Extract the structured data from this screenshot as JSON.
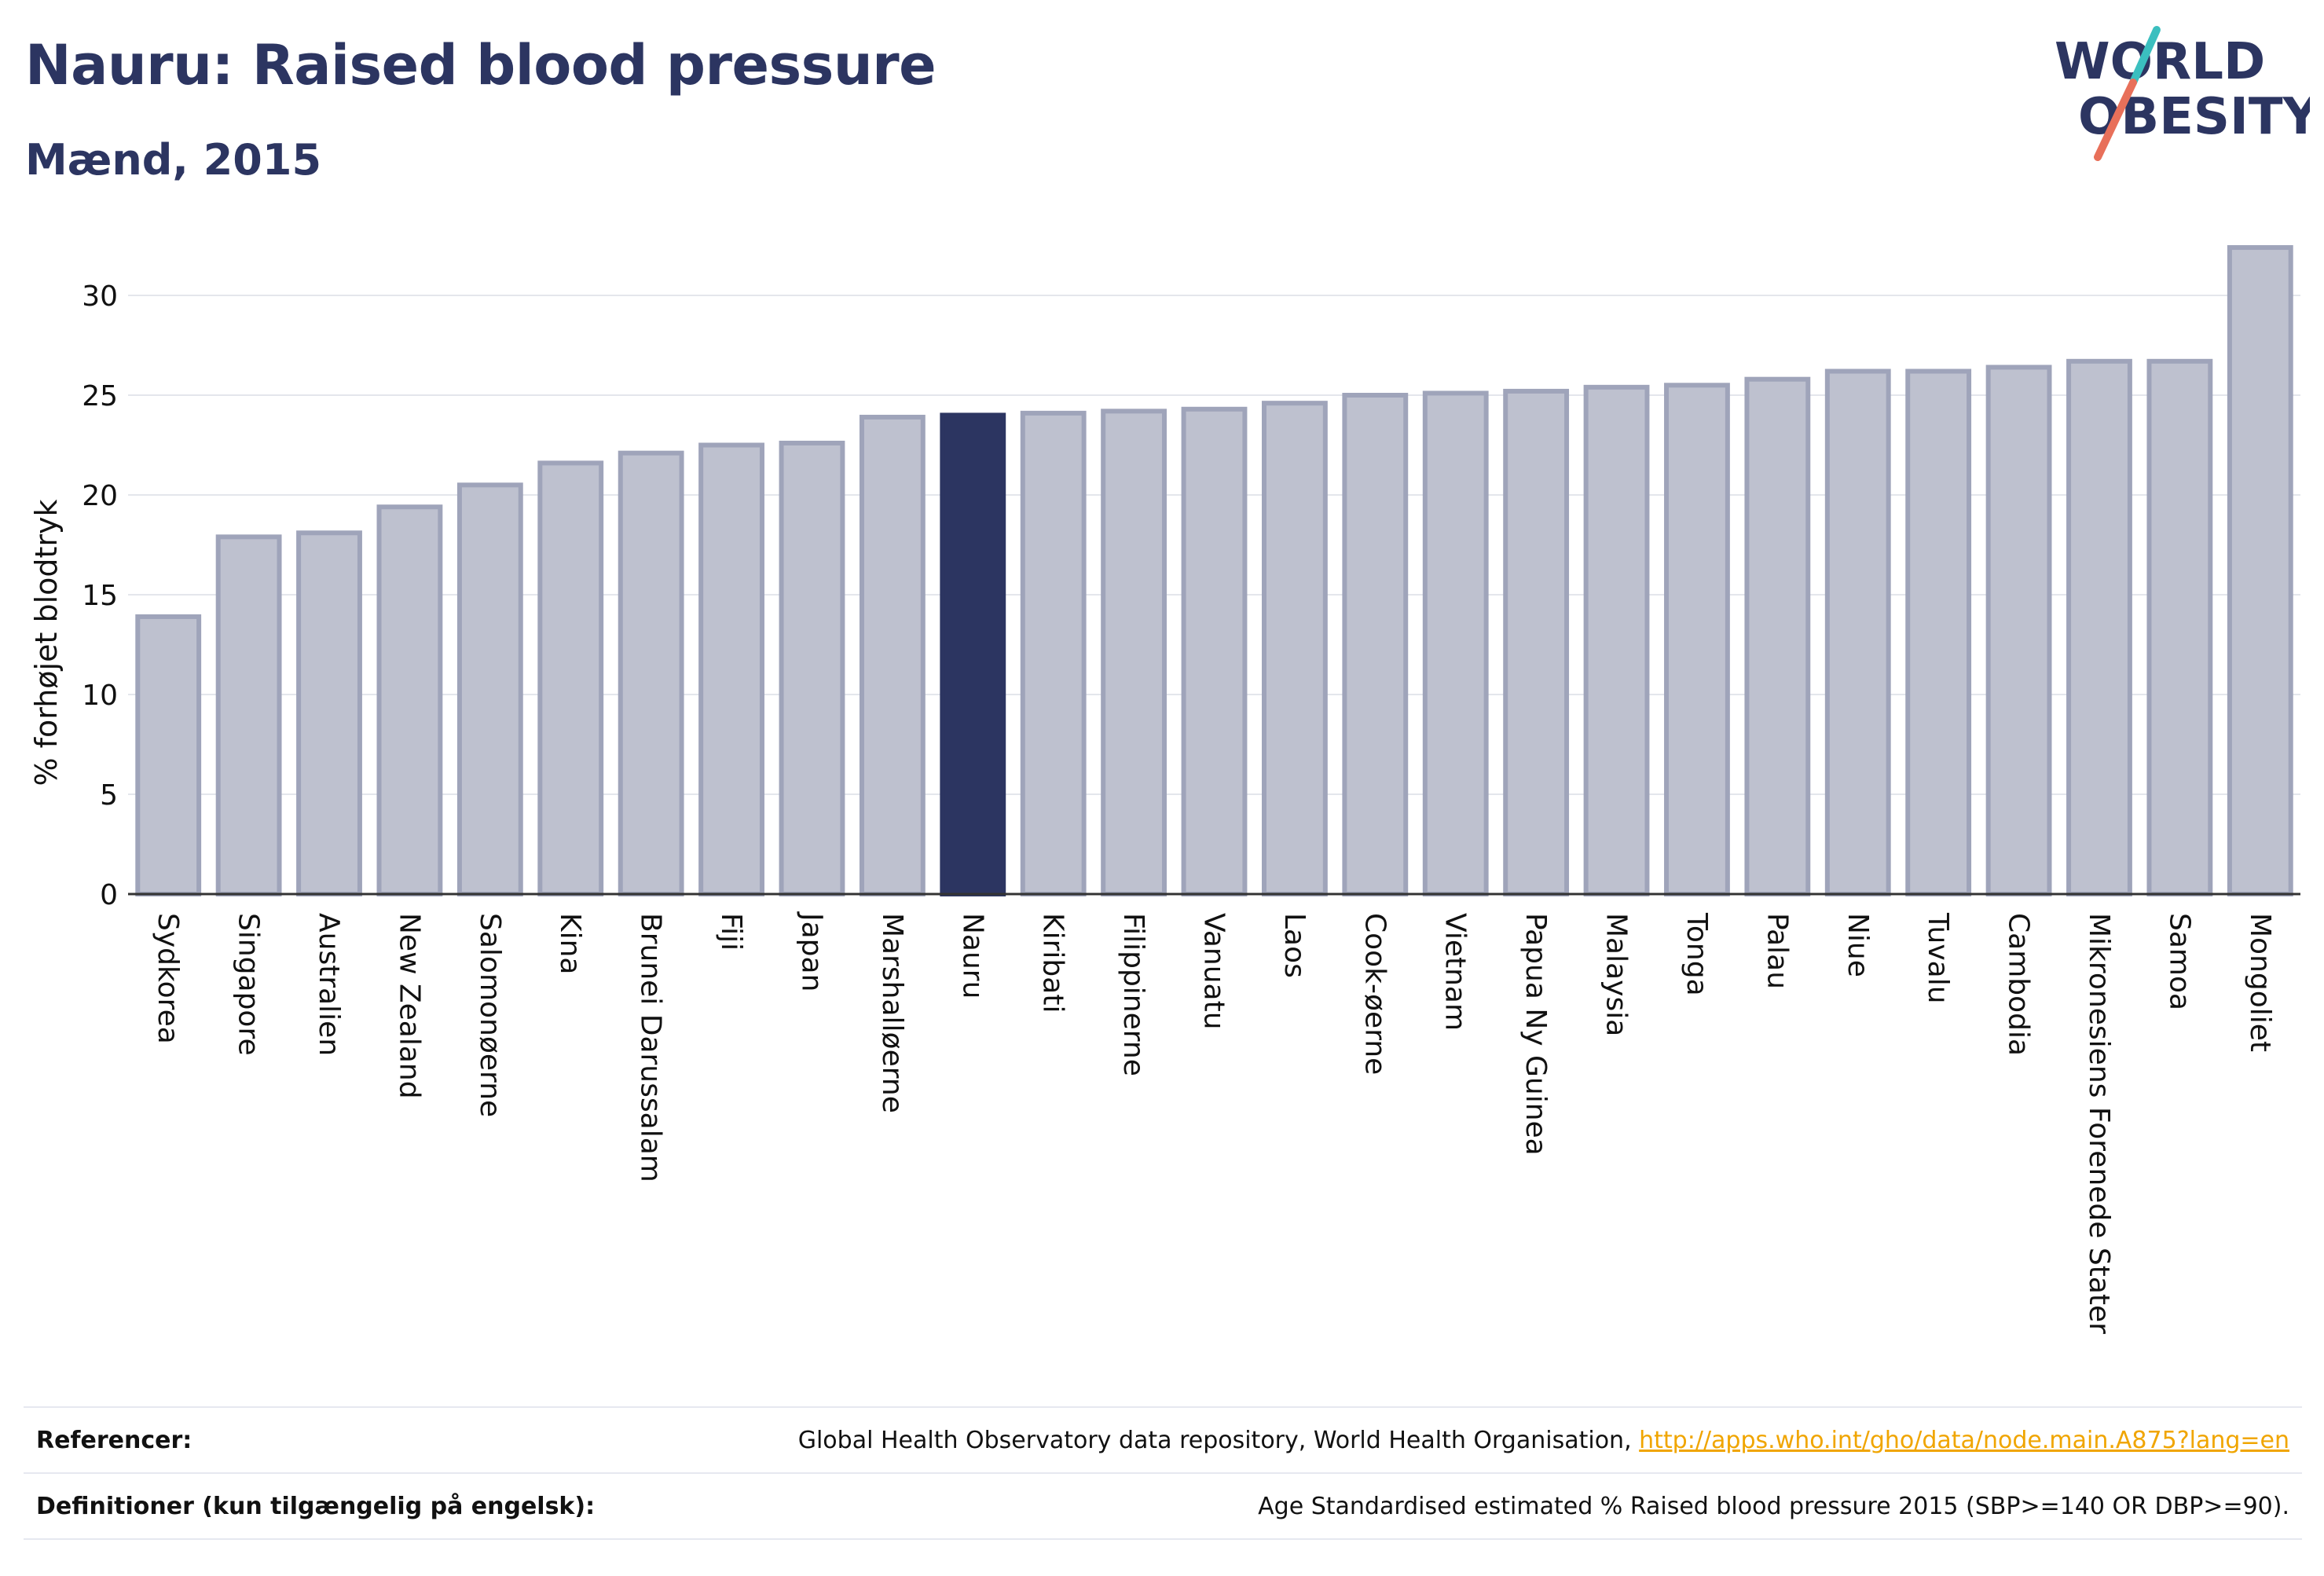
{
  "header": {
    "title": "Nauru: Raised blood pressure",
    "subtitle": "Mænd, 2015"
  },
  "logo": {
    "line1": "WORLD",
    "line2": "OBESITY",
    "colors": {
      "text": "#2c3561",
      "slash_top": "#3bbfbf",
      "slash_bottom": "#e8705a"
    }
  },
  "chart_data": {
    "type": "bar",
    "ylabel": "% forhøjet blodtryk",
    "ylim": [
      0,
      33
    ],
    "yticks": [
      0,
      5,
      10,
      15,
      20,
      25,
      30
    ],
    "grid": true,
    "highlight": "Nauru",
    "colors": {
      "bar": "#bec1cf",
      "bar_border": "#9fa4ba",
      "highlight": "#2c3561"
    },
    "categories": [
      "Sydkorea",
      "Singapore",
      "Australien",
      "New Zealand",
      "Salomonøerne",
      "Kina",
      "Brunei Darussalam",
      "Fiji",
      "Japan",
      "Marshalløerne",
      "Nauru",
      "Kiribati",
      "Filippinerne",
      "Vanuatu",
      "Laos",
      "Cook-øerne",
      "Vietnam",
      "Papua Ny Guinea",
      "Malaysia",
      "Tonga",
      "Palau",
      "Niue",
      "Tuvalu",
      "Cambodia",
      "Mikronesiens Forenede Stater",
      "Samoa",
      "Mongoliet"
    ],
    "values": [
      13.9,
      17.9,
      18.1,
      19.4,
      20.5,
      21.6,
      22.1,
      22.5,
      22.6,
      23.9,
      24.0,
      24.1,
      24.2,
      24.3,
      24.6,
      25.0,
      25.1,
      25.2,
      25.4,
      25.5,
      25.8,
      26.2,
      26.2,
      26.4,
      26.7,
      26.7,
      32.4
    ]
  },
  "references": {
    "ref_label": "Referencer:",
    "ref_text": "Global Health Observatory data repository, World Health Organisation, ",
    "ref_link": "http://apps.who.int/gho/data/node.main.A875?lang=en",
    "def_label": "Definitioner (kun tilgængelig på engelsk):",
    "def_text": "Age Standardised estimated % Raised blood pressure 2015 (SBP>=140 OR DBP>=90)."
  }
}
